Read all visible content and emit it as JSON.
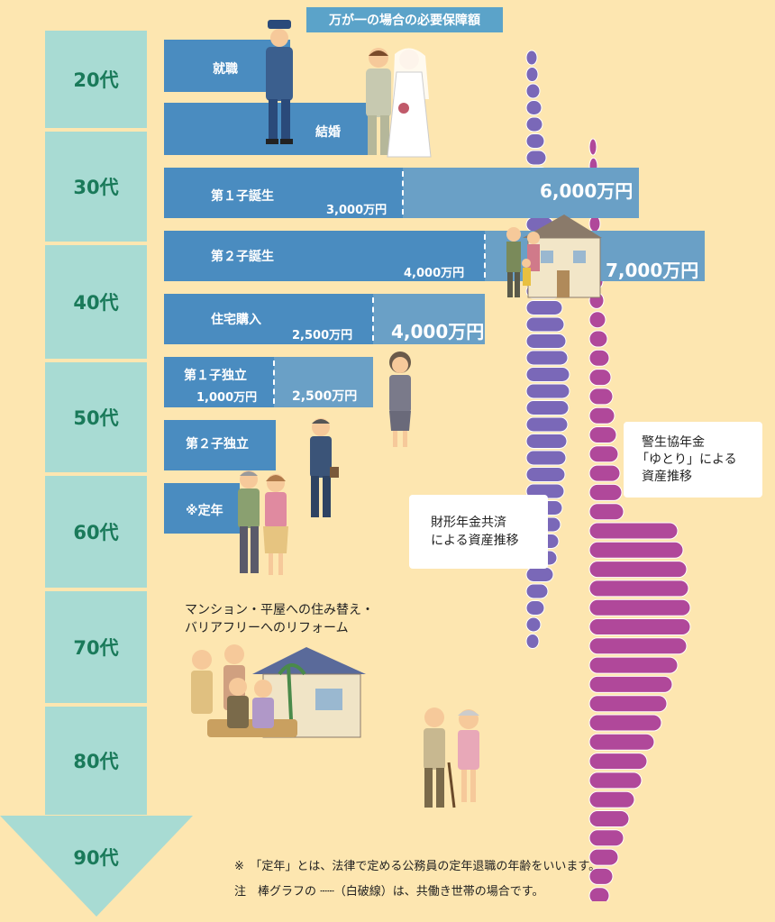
{
  "title": "万が一の場合の必要保障額",
  "ages": [
    "20代",
    "30代",
    "40代",
    "50代",
    "60代",
    "70代",
    "80代",
    "90代"
  ],
  "events": {
    "employment": "就職",
    "marriage": "結婚",
    "first_child": "第１子誕生",
    "first_child_amount": "3,000万円",
    "first_child_dual": "6,000万円",
    "second_child": "第２子誕生",
    "second_child_amount": "4,000万円",
    "second_child_dual": "7,000万円",
    "house": "住宅購入",
    "house_amount": "2,500万円",
    "house_dual": "4,000万円",
    "first_indep": "第１子独立",
    "first_indep_amount": "1,000万円",
    "first_indep_dual": "2,500万円",
    "second_indep": "第２子独立",
    "retire": "※定年"
  },
  "reform_text": [
    "マンション・平屋への住み替え・",
    "バリアフリーへのリフォーム"
  ],
  "notes": {
    "zaikei": [
      "財形年金共済",
      "による資産推移"
    ],
    "keisei": [
      "警生協年金",
      "「ゆとり」による",
      "資産推移"
    ]
  },
  "footnotes": {
    "line1": "※　「定年」とは、法律で定める公務員の定年退職の年齢をいいます。",
    "line2": "注　棒グラフの ┄┄（白破線）は、共働き世帯の場合です。"
  },
  "colors": {
    "coin_purple": "#7a68b8",
    "coin_pink": "#b0489a",
    "bar_blue": "#4a8cc0",
    "age_green": "#a8dbd3"
  }
}
